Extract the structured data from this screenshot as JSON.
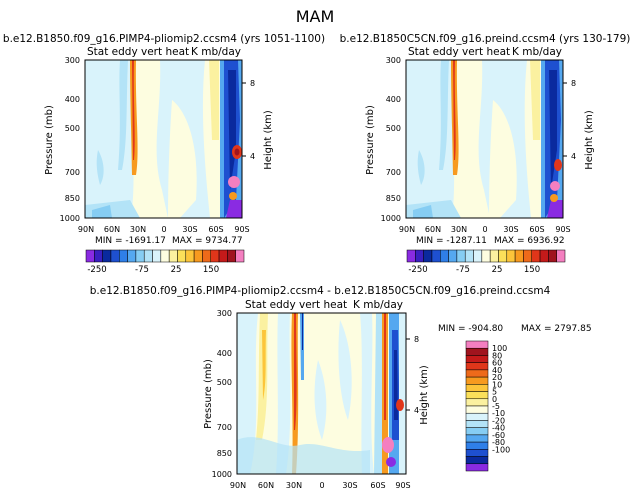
{
  "season_title": "MAM",
  "colors": {
    "plevels": [
      "#8a2be2",
      "#3a1fc0",
      "#0a2a9e",
      "#1e50d0",
      "#2f7fe8",
      "#55a8f0",
      "#86cdf3",
      "#b3e3f7",
      "#d9f3fb",
      "#fdfde0",
      "#fbf1a0",
      "#fbe05a",
      "#fcc53a",
      "#f79a1f",
      "#ee6a1a",
      "#e0361a",
      "#c41a1a",
      "#a0141e",
      "#f47fc0"
    ],
    "dlevels": [
      "#8a2be2",
      "#0a2a9e",
      "#1e50d0",
      "#2f7fe8",
      "#55a8f0",
      "#86cdf3",
      "#b3e3f7",
      "#d9f3fb",
      "#fdfde0",
      "#fbf1a0",
      "#fbe05a",
      "#fcc53a",
      "#f79a1f",
      "#ee6a1a",
      "#e0361a",
      "#c41a1a",
      "#a0141e",
      "#f47fc0"
    ]
  },
  "chart_data": [
    {
      "type": "heatmap",
      "title": "b.e12.B1850.f09_g16.PIMP4-pliomip2.ccsm4 (yrs 1051-1100)",
      "subtitle_left": "Stat eddy vert heat",
      "subtitle_right": "K mb/day",
      "ylabel": "Pressure (mb)",
      "ylabel_right": "Height (km)",
      "x_ticks": [
        "90N",
        "60N",
        "30N",
        "0",
        "30S",
        "60S",
        "90S"
      ],
      "y_ticks": [
        "300",
        "400",
        "500",
        "700",
        "850",
        "1000"
      ],
      "right_ticks": [
        "8",
        "4"
      ],
      "min_label": "MIN = -1691.17",
      "max_label": "MAX = 9734.77",
      "min": -1691.17,
      "max": 9734.77,
      "colorbar_labels": [
        "-250",
        "-75",
        "25",
        "150"
      ]
    },
    {
      "type": "heatmap",
      "title": "b.e12.B1850C5CN.f09_g16.preind.ccsm4 (yrs 130-179)",
      "subtitle_left": "Stat eddy vert heat",
      "subtitle_right": "K mb/day",
      "ylabel": "Pressure (mb)",
      "ylabel_right": "Height (km)",
      "x_ticks": [
        "90N",
        "60N",
        "30N",
        "0",
        "30S",
        "60S",
        "90S"
      ],
      "y_ticks": [
        "300",
        "400",
        "500",
        "700",
        "850",
        "1000"
      ],
      "right_ticks": [
        "8",
        "4"
      ],
      "min_label": "MIN = -1287.11",
      "max_label": "MAX = 6936.92",
      "min": -1287.11,
      "max": 6936.92,
      "colorbar_labels": [
        "-250",
        "-75",
        "25",
        "150"
      ]
    },
    {
      "type": "heatmap",
      "title": "b.e12.B1850.f09_g16.PIMP4-pliomip2.ccsm4 - b.e12.B1850C5CN.f09_g16.preind.ccsm4",
      "subtitle_left": "Stat eddy vert heat",
      "subtitle_right": "K mb/day",
      "ylabel": "Pressure (mb)",
      "ylabel_right": "Height (km)",
      "x_ticks": [
        "90N",
        "60N",
        "30N",
        "0",
        "30S",
        "60S",
        "90S"
      ],
      "y_ticks": [
        "300",
        "400",
        "500",
        "700",
        "850",
        "1000"
      ],
      "right_ticks": [
        "8",
        "4"
      ],
      "min_label": "MIN = -904.80",
      "max_label": "MAX = 2797.85",
      "min": -904.8,
      "max": 2797.85,
      "colorbar_labels": [
        "100",
        "80",
        "60",
        "40",
        "20",
        "10",
        "5",
        "0",
        "-5",
        "-10",
        "-20",
        "-40",
        "-60",
        "-80",
        "-100"
      ]
    }
  ]
}
